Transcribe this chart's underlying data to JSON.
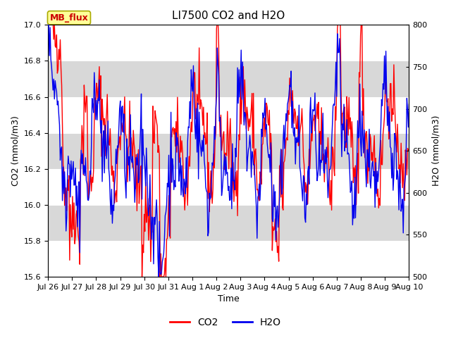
{
  "title": "LI7500 CO2 and H2O",
  "xlabel": "Time",
  "ylabel_left": "CO2 (mmol/m3)",
  "ylabel_right": "H2O (mmol/m3)",
  "ylim_left": [
    15.6,
    17.0
  ],
  "ylim_right": [
    500,
    800
  ],
  "yticks_left": [
    15.6,
    15.8,
    16.0,
    16.2,
    16.4,
    16.6,
    16.8,
    17.0
  ],
  "yticks_right": [
    500,
    550,
    600,
    650,
    700,
    750,
    800
  ],
  "xtick_labels": [
    "Jul 26",
    "Jul 27",
    "Jul 28",
    "Jul 29",
    "Jul 30",
    "Jul 31",
    "Aug 1",
    "Aug 2",
    "Aug 3",
    "Aug 4",
    "Aug 5",
    "Aug 6",
    "Aug 7",
    "Aug 8",
    "Aug 9",
    "Aug 10"
  ],
  "legend_label_co2": "CO2",
  "legend_label_h2o": "H2O",
  "co2_color": "#FF0000",
  "h2o_color": "#0000EE",
  "co2_linewidth": 1.0,
  "h2o_linewidth": 1.0,
  "background_color": "#FFFFFF",
  "plot_bg_color": "#D8D8D8",
  "grid_color": "#FFFFFF",
  "stripe_color": "#C8C8C8",
  "mb_flux_label": "MB_flux",
  "mb_flux_bg": "#FFFF99",
  "mb_flux_border": "#AAAA00",
  "mb_flux_color": "#CC0000",
  "title_fontsize": 11,
  "axis_fontsize": 9,
  "tick_fontsize": 8,
  "legend_fontsize": 10,
  "n_points": 500,
  "seed": 42
}
